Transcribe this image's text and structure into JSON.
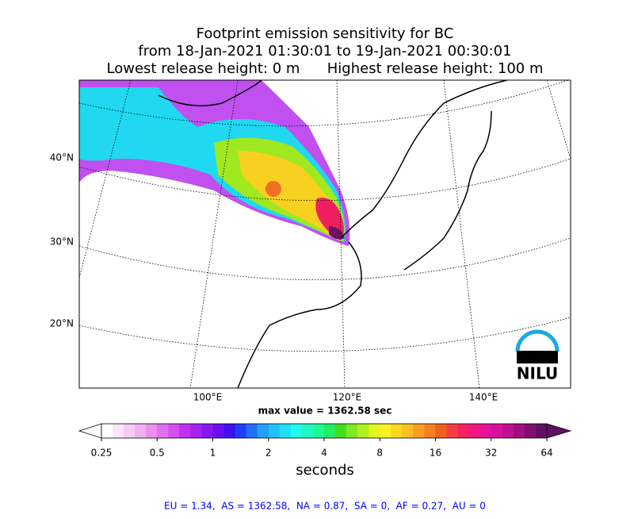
{
  "header": {
    "title_lines": [
      "Footprint emission sensitivity for BC",
      "from 18-Jan-2021 01:30:01 to 19-Jan-2021 00:30:01",
      "Lowest release height: 0 m      Highest release height: 100 m"
    ]
  },
  "map": {
    "lat_labels": [
      "40°N",
      "30°N",
      "20°N"
    ],
    "lon_labels": [
      "100°E",
      "120°E",
      "140°E"
    ],
    "logo": "NILU"
  },
  "max_value": "max value = 1362.58 sec",
  "colorbar": {
    "label": "seconds",
    "scale": "log",
    "lim": [
      0.25,
      64
    ],
    "ticks": [
      0.25,
      0.5,
      1,
      2,
      4,
      8,
      16,
      32,
      64
    ],
    "colors": [
      "#ffffff",
      "#fbe6fb",
      "#f6ccf6",
      "#f0b0f0",
      "#ea90ee",
      "#e070ee",
      "#d050f0",
      "#c030f0",
      "#a820f0",
      "#8818f0",
      "#6810f0",
      "#4010f0",
      "#2040f8",
      "#2070f8",
      "#20a0f8",
      "#20c0f8",
      "#20e0f8",
      "#20f8f0",
      "#20f8c0",
      "#20f890",
      "#20f060",
      "#40e020",
      "#80e820",
      "#b0f020",
      "#e0f820",
      "#f8f020",
      "#f8d820",
      "#f8c020",
      "#f8a020",
      "#f88020",
      "#f06020",
      "#f04040",
      "#f82060",
      "#f01880",
      "#e81098",
      "#d810a0",
      "#c01090",
      "#a01080",
      "#801070",
      "#601060"
    ]
  },
  "footer": "EU = 1.34,  AS = 1362.58,  NA = 0.87,  SA = 0,  AF = 0.27,  AU = 0"
}
